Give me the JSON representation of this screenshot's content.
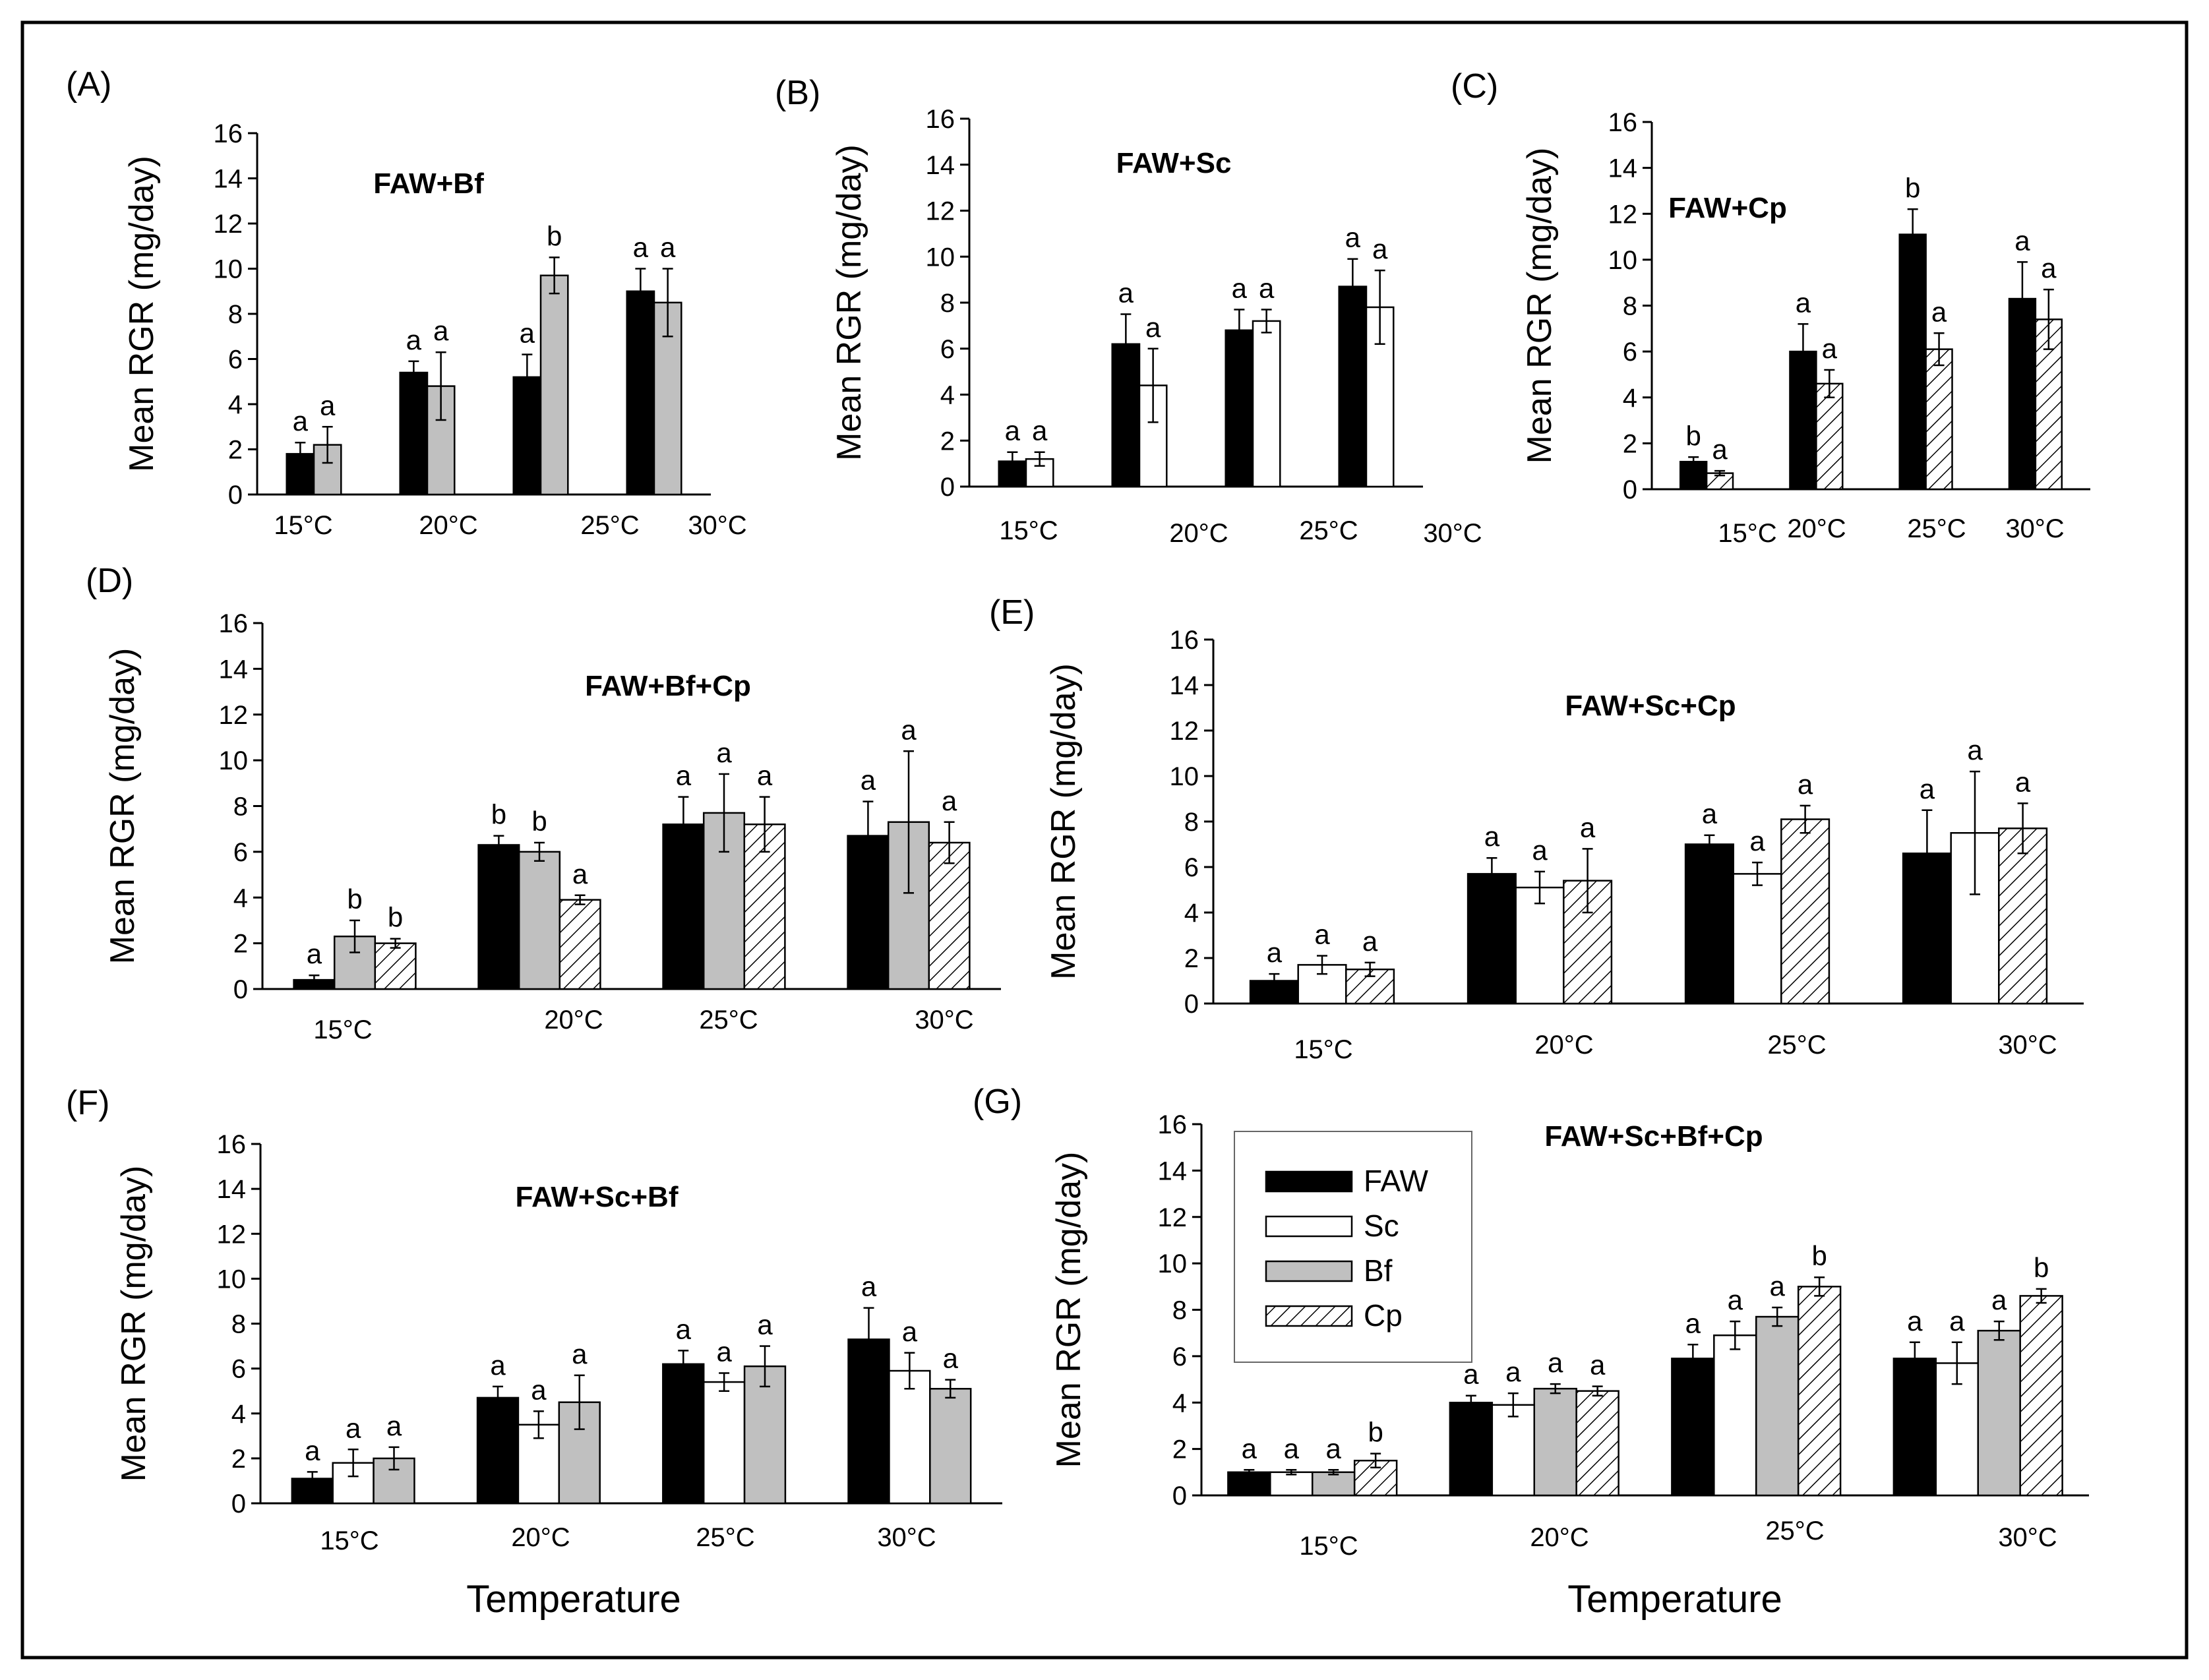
{
  "chart_data": [
    {
      "panel": "(A)",
      "title": "FAW+Bf",
      "type": "bar",
      "ylabel": "Mean RGR (mg/day)",
      "ylim": [
        0,
        16
      ],
      "yticks": [
        0,
        2,
        4,
        6,
        8,
        10,
        12,
        14,
        16
      ],
      "categories": [
        "15°C",
        "20°C",
        "25°C",
        "30°C"
      ],
      "series": [
        {
          "name": "FAW",
          "values": [
            1.8,
            5.4,
            5.2,
            9.0
          ],
          "errors": [
            0.5,
            0.5,
            1.0,
            1.0
          ],
          "letters": [
            "a",
            "a",
            "a",
            "a"
          ]
        },
        {
          "name": "Bf",
          "values": [
            2.2,
            4.8,
            9.7,
            8.5
          ],
          "errors": [
            0.8,
            1.5,
            0.8,
            1.5
          ],
          "letters": [
            "a",
            "a",
            "b",
            "a"
          ]
        }
      ]
    },
    {
      "panel": "(B)",
      "title": "FAW+Sc",
      "type": "bar",
      "ylabel": "Mean RGR (mg/day)",
      "ylim": [
        0,
        16
      ],
      "yticks": [
        0,
        2,
        4,
        6,
        8,
        10,
        12,
        14,
        16
      ],
      "categories": [
        "15°C",
        "20°C",
        "25°C",
        "30°C"
      ],
      "series": [
        {
          "name": "FAW",
          "values": [
            1.1,
            6.2,
            6.8,
            8.7
          ],
          "errors": [
            0.4,
            1.3,
            0.9,
            1.2
          ],
          "letters": [
            "a",
            "a",
            "a",
            "a"
          ]
        },
        {
          "name": "Sc",
          "values": [
            1.2,
            4.4,
            7.2,
            7.8
          ],
          "errors": [
            0.3,
            1.6,
            0.5,
            1.6
          ],
          "letters": [
            "a",
            "a",
            "a",
            "a"
          ]
        }
      ]
    },
    {
      "panel": "(C)",
      "title": "FAW+Cp",
      "type": "bar",
      "ylabel": "Mean RGR (mg/day)",
      "ylim": [
        0,
        16
      ],
      "yticks": [
        0,
        2,
        4,
        6,
        8,
        10,
        12,
        14,
        16
      ],
      "categories": [
        "15°C",
        "20°C",
        "25°C",
        "30°C"
      ],
      "series": [
        {
          "name": "FAW",
          "values": [
            1.2,
            6.0,
            11.1,
            8.3
          ],
          "errors": [
            0.2,
            1.2,
            1.1,
            1.6
          ],
          "letters": [
            "b",
            "a",
            "b",
            "a"
          ]
        },
        {
          "name": "Cp",
          "values": [
            0.7,
            4.6,
            6.1,
            7.4
          ],
          "errors": [
            0.1,
            0.6,
            0.7,
            1.3
          ],
          "letters": [
            "a",
            "a",
            "a",
            "a"
          ]
        }
      ]
    },
    {
      "panel": "(D)",
      "title": "FAW+Bf+Cp",
      "type": "bar",
      "ylabel": "Mean RGR (mg/day)",
      "ylim": [
        0,
        16
      ],
      "yticks": [
        0,
        2,
        4,
        6,
        8,
        10,
        12,
        14,
        16
      ],
      "categories": [
        "15°C",
        "20°C",
        "25°C",
        "30°C"
      ],
      "series": [
        {
          "name": "FAW",
          "values": [
            0.4,
            6.3,
            7.2,
            6.7
          ],
          "errors": [
            0.2,
            0.4,
            1.2,
            1.5
          ],
          "letters": [
            "a",
            "b",
            "a",
            "a"
          ]
        },
        {
          "name": "Bf",
          "values": [
            2.3,
            6.0,
            7.7,
            7.3
          ],
          "errors": [
            0.7,
            0.4,
            1.7,
            3.1
          ],
          "letters": [
            "b",
            "b",
            "a",
            "a"
          ]
        },
        {
          "name": "Cp",
          "values": [
            2.0,
            3.9,
            7.2,
            6.4
          ],
          "errors": [
            0.2,
            0.2,
            1.2,
            0.9
          ],
          "letters": [
            "b",
            "a",
            "a",
            "a"
          ]
        }
      ]
    },
    {
      "panel": "(E)",
      "title": "FAW+Sc+Cp",
      "type": "bar",
      "ylabel": "Mean RGR (mg/day)",
      "ylim": [
        0,
        16
      ],
      "yticks": [
        0,
        2,
        4,
        6,
        8,
        10,
        12,
        14,
        16
      ],
      "categories": [
        "15°C",
        "20°C",
        "25°C",
        "30°C"
      ],
      "series": [
        {
          "name": "FAW",
          "values": [
            1.0,
            5.7,
            7.0,
            6.6
          ],
          "errors": [
            0.3,
            0.7,
            0.4,
            1.9
          ],
          "letters": [
            "a",
            "a",
            "a",
            "a"
          ]
        },
        {
          "name": "Sc",
          "values": [
            1.7,
            5.1,
            5.7,
            7.5
          ],
          "errors": [
            0.4,
            0.7,
            0.5,
            2.7
          ],
          "letters": [
            "a",
            "a",
            "a",
            "a"
          ]
        },
        {
          "name": "Cp",
          "values": [
            1.5,
            5.4,
            8.1,
            7.7
          ],
          "errors": [
            0.3,
            1.4,
            0.6,
            1.1
          ],
          "letters": [
            "a",
            "a",
            "a",
            "a"
          ]
        }
      ]
    },
    {
      "panel": "(F)",
      "title": "FAW+Sc+Bf",
      "type": "bar",
      "ylabel": "Mean RGR (mg/day)",
      "ylim": [
        0,
        16
      ],
      "yticks": [
        0,
        2,
        4,
        6,
        8,
        10,
        12,
        14,
        16
      ],
      "categories": [
        "15°C",
        "20°C",
        "25°C",
        "30°C"
      ],
      "xlabel": "Temperature",
      "series": [
        {
          "name": "FAW",
          "values": [
            1.1,
            4.7,
            6.2,
            7.3
          ],
          "errors": [
            0.3,
            0.5,
            0.6,
            1.4
          ],
          "letters": [
            "a",
            "a",
            "a",
            "a"
          ]
        },
        {
          "name": "Sc",
          "values": [
            1.8,
            3.5,
            5.4,
            5.9
          ],
          "errors": [
            0.6,
            0.6,
            0.4,
            0.8
          ],
          "letters": [
            "a",
            "a",
            "a",
            "a"
          ]
        },
        {
          "name": "Bf",
          "values": [
            2.0,
            4.5,
            6.1,
            5.1
          ],
          "errors": [
            0.5,
            1.2,
            0.9,
            0.4
          ],
          "letters": [
            "a",
            "a",
            "a",
            "a"
          ]
        }
      ]
    },
    {
      "panel": "(G)",
      "title": "FAW+Sc+Bf+Cp",
      "type": "bar",
      "ylabel": "Mean RGR (mg/day)",
      "ylim": [
        0,
        16
      ],
      "yticks": [
        0,
        2,
        4,
        6,
        8,
        10,
        12,
        14,
        16
      ],
      "categories": [
        "15°C",
        "20°C",
        "25°C",
        "30°C"
      ],
      "xlabel": "Temperature",
      "legend": {
        "position": "top-left",
        "entries": [
          "FAW",
          "Sc",
          "Bf",
          "Cp"
        ]
      },
      "series": [
        {
          "name": "FAW",
          "values": [
            1.0,
            4.0,
            5.9,
            5.9
          ],
          "errors": [
            0.1,
            0.3,
            0.6,
            0.7
          ],
          "letters": [
            "a",
            "a",
            "a",
            "a"
          ]
        },
        {
          "name": "Sc",
          "values": [
            1.0,
            3.9,
            6.9,
            5.7
          ],
          "errors": [
            0.1,
            0.5,
            0.6,
            0.9
          ],
          "letters": [
            "a",
            "a",
            "a",
            "a"
          ]
        },
        {
          "name": "Bf",
          "values": [
            1.0,
            4.6,
            7.7,
            7.1
          ],
          "errors": [
            0.1,
            0.2,
            0.4,
            0.4
          ],
          "letters": [
            "a",
            "a",
            "a",
            "a"
          ]
        },
        {
          "name": "Cp",
          "values": [
            1.5,
            4.5,
            9.0,
            8.6
          ],
          "errors": [
            0.3,
            0.2,
            0.4,
            0.3
          ],
          "letters": [
            "b",
            "a",
            "b",
            "b"
          ]
        }
      ]
    }
  ],
  "series_styles": {
    "FAW": {
      "fill": "#000000",
      "pattern": "solid"
    },
    "Sc": {
      "fill": "#ffffff",
      "pattern": "solid"
    },
    "Bf": {
      "fill": "#c0c0c0",
      "pattern": "solid"
    },
    "Cp": {
      "fill": "#ffffff",
      "pattern": "hatch"
    }
  }
}
